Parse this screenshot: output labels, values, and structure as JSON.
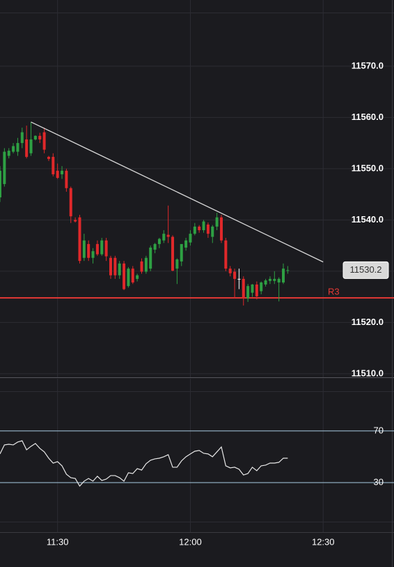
{
  "chart_data": [
    {
      "type": "candlestick",
      "x": [
        "11:17",
        "11:18",
        "11:19",
        "11:20",
        "11:21",
        "11:22",
        "11:23",
        "11:24",
        "11:25",
        "11:26",
        "11:27",
        "11:28",
        "11:29",
        "11:30",
        "11:31",
        "11:32",
        "11:33",
        "11:34",
        "11:35",
        "11:36",
        "11:37",
        "11:38",
        "11:39",
        "11:40",
        "11:41",
        "11:42",
        "11:43",
        "11:44",
        "11:45",
        "11:46",
        "11:47",
        "11:48",
        "11:49",
        "11:50",
        "11:51",
        "11:52",
        "11:53",
        "11:54",
        "11:55",
        "11:56",
        "11:57",
        "11:58",
        "11:59",
        "12:00",
        "12:01",
        "12:02",
        "12:03",
        "12:04",
        "12:05",
        "12:06",
        "12:07",
        "12:08",
        "12:09",
        "12:10",
        "12:11",
        "12:12",
        "12:13",
        "12:14",
        "12:15",
        "12:16",
        "12:17",
        "12:18",
        "12:19",
        "12:20",
        "12:21",
        "12:22"
      ],
      "open": [
        11544.4,
        11547,
        11552.5,
        11553.3,
        11553.3,
        11555,
        11555.7,
        11553,
        11555.7,
        11556.4,
        11557.1,
        11552.3,
        11552.3,
        11549.6,
        11548.9,
        11549.6,
        11546.2,
        11540,
        11540.5,
        11532.6,
        11535.3,
        11532.6,
        11535.3,
        11533.3,
        11536,
        11532.6,
        11532.6,
        11529.2,
        11531.5,
        11527.1,
        11530.5,
        11528.5,
        11531.9,
        11529.9,
        11530.5,
        11534.2,
        11535.3,
        11536,
        11537.1,
        11536.7,
        11530.5,
        11531.9,
        11534.6,
        11535.6,
        11537.3,
        11538.7,
        11538,
        11539.1,
        11536.7,
        11538.7,
        11540.5,
        11536,
        11530.5,
        11529.9,
        11528.5,
        11528.5,
        11524.7,
        11525.8,
        11527.4,
        11526.1,
        11527.4,
        11528.1,
        11528.1,
        11527.8,
        11527.8,
        11530.1
      ],
      "high": [
        11550.5,
        11554,
        11554,
        11555,
        11556,
        11558,
        11558.4,
        11559.1,
        11556.5,
        11557,
        11558,
        11552.5,
        11553,
        11551,
        11550.5,
        11550,
        11546.5,
        11540.5,
        11541,
        11537.3,
        11536,
        11534.5,
        11536,
        11536.5,
        11536.5,
        11533,
        11533,
        11532,
        11532,
        11530.8,
        11531,
        11529.5,
        11532.5,
        11533,
        11535,
        11535.5,
        11536.5,
        11538,
        11542.8,
        11537,
        11532.5,
        11535,
        11536.5,
        11538,
        11539.4,
        11539,
        11540,
        11539.5,
        11539,
        11541.4,
        11541,
        11536.5,
        11531,
        11530.5,
        11530.5,
        11529,
        11527.5,
        11527.5,
        11528,
        11528,
        11528.5,
        11529,
        11530,
        11528.8,
        11531.5,
        11531
      ],
      "low": [
        11543.5,
        11546.5,
        11552,
        11553,
        11552.5,
        11554,
        11552,
        11552.5,
        11555.5,
        11555,
        11553,
        11551.5,
        11548.5,
        11548,
        11548,
        11545.5,
        11539.4,
        11539.5,
        11531.5,
        11532,
        11532,
        11531.5,
        11533,
        11533,
        11532,
        11528.5,
        11528.5,
        11528.5,
        11526.3,
        11526.8,
        11527.5,
        11528,
        11529.5,
        11529.5,
        11530,
        11533.5,
        11534.5,
        11535.5,
        11535.5,
        11530,
        11527.5,
        11531,
        11534,
        11535,
        11537,
        11537.5,
        11537.5,
        11536.5,
        11535.5,
        11538,
        11535.5,
        11530,
        11529,
        11524.7,
        11526.5,
        11523.3,
        11524,
        11525,
        11524.5,
        11525.5,
        11527,
        11527.5,
        11527.5,
        11524.1,
        11527.5,
        11529.5
      ],
      "close": [
        11549.6,
        11553.3,
        11553.5,
        11554.4,
        11555,
        11557.1,
        11552.3,
        11555.7,
        11556.4,
        11555.7,
        11553.7,
        11551.9,
        11548.9,
        11548.2,
        11549.6,
        11546.2,
        11540.7,
        11539.7,
        11532,
        11536,
        11532.6,
        11533.9,
        11533.3,
        11536,
        11532.9,
        11529.2,
        11529.2,
        11531.5,
        11526.5,
        11530.5,
        11527.8,
        11529.2,
        11529.9,
        11532.6,
        11534.6,
        11535.3,
        11536.3,
        11537.3,
        11536.7,
        11530.1,
        11532.3,
        11535.3,
        11536,
        11537.3,
        11538.7,
        11538,
        11539.7,
        11537.3,
        11538.7,
        11540.5,
        11536,
        11530.5,
        11529.6,
        11528.5,
        11528.5,
        11524.7,
        11527.1,
        11527.4,
        11525.1,
        11527.8,
        11528.2,
        11528.5,
        11528.5,
        11528.5,
        11530.5,
        11530.2
      ],
      "up_color": "#2ea043",
      "down_color": "#e0282a",
      "doji_color": "#ffffff",
      "xlim": [
        "11:17",
        "12:46"
      ],
      "ylim": [
        11509.3,
        11582.9
      ],
      "yticks": [
        {
          "value": 11510,
          "label": "11510.0"
        },
        {
          "value": 11520,
          "label": "11520.0"
        },
        {
          "value": 11530,
          "label": "11530.0"
        },
        {
          "value": 11540,
          "label": "11540.0"
        },
        {
          "value": 11550,
          "label": "11550.0"
        },
        {
          "value": 11560,
          "label": "11560.0"
        },
        {
          "value": 11570,
          "label": "11570.0"
        }
      ],
      "trendline": {
        "x": [
          "11:24",
          "12:30"
        ],
        "values": [
          11559.1,
          11531.8
        ],
        "color": "#d8d8d8"
      },
      "hlines": [
        {
          "name": "R3",
          "value": 11524.8,
          "color": "#e53935"
        }
      ],
      "last_price": 11530.2,
      "grid": true
    },
    {
      "type": "line",
      "x": [
        "11:17",
        "11:18",
        "11:19",
        "11:20",
        "11:21",
        "11:22",
        "11:23",
        "11:24",
        "11:25",
        "11:26",
        "11:27",
        "11:28",
        "11:29",
        "11:30",
        "11:31",
        "11:32",
        "11:33",
        "11:34",
        "11:35",
        "11:36",
        "11:37",
        "11:38",
        "11:39",
        "11:40",
        "11:41",
        "11:42",
        "11:43",
        "11:44",
        "11:45",
        "11:46",
        "11:47",
        "11:48",
        "11:49",
        "11:50",
        "11:51",
        "11:52",
        "11:53",
        "11:54",
        "11:55",
        "11:56",
        "11:57",
        "11:58",
        "11:59",
        "12:00",
        "12:01",
        "12:02",
        "12:03",
        "12:04",
        "12:05",
        "12:06",
        "12:07",
        "12:08",
        "12:09",
        "12:10",
        "12:11",
        "12:12",
        "12:13",
        "12:14",
        "12:15",
        "12:16",
        "12:17",
        "12:18",
        "12:19",
        "12:20",
        "12:21",
        "12:22"
      ],
      "values": [
        52.2,
        59.2,
        59.7,
        59.2,
        61.4,
        62.4,
        55.4,
        58.1,
        60.3,
        56.5,
        53.8,
        48.9,
        45.1,
        46.2,
        43,
        36.5,
        33.8,
        33.2,
        27.3,
        31.1,
        33.2,
        31.1,
        34.9,
        31.6,
        32.7,
        35.4,
        35.4,
        33.8,
        31.1,
        37.6,
        37,
        40.8,
        39.7,
        44.6,
        47.3,
        48.4,
        48.9,
        50,
        51.6,
        41.9,
        41.9,
        46.8,
        50,
        52.2,
        54.3,
        54.9,
        52.7,
        52.2,
        50,
        53.8,
        57.6,
        43,
        41.4,
        41.9,
        40.3,
        35.9,
        37,
        41.9,
        39.2,
        43,
        43.5,
        45.1,
        45.1,
        45.7,
        48.9,
        48.9
      ],
      "color": "#e8e8e8",
      "xlim": [
        "11:17",
        "12:46"
      ],
      "xticks": [
        "11:30",
        "12:00",
        "12:30"
      ],
      "ylim": [
        -8.4,
        110.5
      ],
      "yticks": [
        30,
        70
      ],
      "level_color": "#a9cce3"
    }
  ]
}
